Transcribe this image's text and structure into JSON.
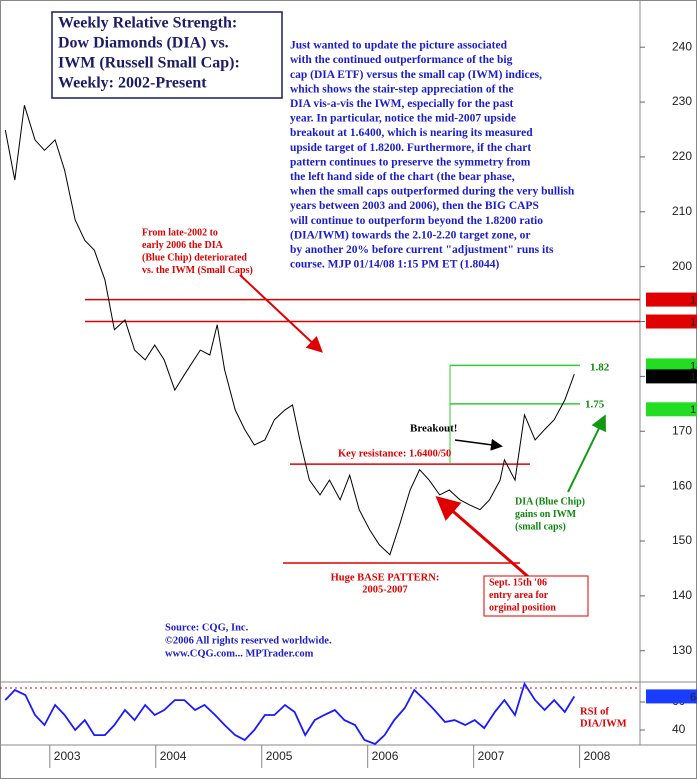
{
  "chart_data": [
    {
      "type": "line",
      "title": [
        "Weekly Relative Strength:",
        "Dow Diamonds (DIA) vs.",
        "IWM (Russell Small Cap):",
        "Weekly: 2002-Present"
      ],
      "x": [
        2002.58,
        2002.67,
        2002.76,
        2002.86,
        2002.95,
        2003.05,
        2003.14,
        2003.24,
        2003.33,
        2003.42,
        2003.52,
        2003.61,
        2003.71,
        2003.8,
        2003.9,
        2003.99,
        2004.08,
        2004.18,
        2004.27,
        2004.42,
        2004.51,
        2004.58,
        2004.65,
        2004.75,
        2004.84,
        2004.93,
        2005.03,
        2005.12,
        2005.22,
        2005.29,
        2005.36,
        2005.45,
        2005.55,
        2005.64,
        2005.74,
        2005.83,
        2005.92,
        2006.02,
        2006.11,
        2006.21,
        2006.3,
        2006.4,
        2006.49,
        2006.58,
        2006.68,
        2006.77,
        2006.87,
        2006.96,
        2007.06,
        2007.15,
        2007.25,
        2007.29,
        2007.39,
        2007.48,
        2007.58,
        2007.67,
        2007.76,
        2007.86,
        2007.95
      ],
      "values": [
        224.9,
        215.8,
        229.4,
        223.1,
        221.2,
        223.1,
        217.6,
        208.5,
        204.8,
        203.0,
        197.6,
        188.5,
        190.3,
        184.8,
        183.0,
        185.7,
        183.0,
        177.5,
        180.3,
        184.8,
        183.9,
        189.4,
        181.2,
        173.9,
        170.3,
        167.5,
        168.4,
        172.1,
        173.9,
        174.8,
        168.4,
        161.1,
        158.4,
        161.1,
        157.5,
        162.0,
        155.7,
        152.0,
        149.3,
        147.5,
        152.9,
        159.3,
        163.0,
        161.1,
        158.4,
        159.3,
        157.5,
        156.6,
        155.7,
        157.5,
        161.1,
        164.8,
        161.1,
        173.0,
        168.4,
        170.3,
        172.1,
        175.7,
        180.4
      ],
      "color": "#000000",
      "xlim": [
        2002.53,
        2008.57
      ],
      "xticks": [
        2003,
        2004,
        2005,
        2006,
        2007,
        2008
      ],
      "ylim": [
        124.3,
        248.6
      ],
      "yticks": [
        130,
        140,
        150,
        160,
        170,
        180,
        190,
        200,
        210,
        220,
        230,
        240
      ],
      "reference_lines": [
        {
          "value": 194,
          "color": "#e00000"
        },
        {
          "value": 190,
          "color": "#e00000"
        },
        {
          "value": 164,
          "color": "#e00000"
        },
        {
          "value": 146,
          "color": "#e00000"
        },
        {
          "value": 182,
          "color": "#33cc33"
        },
        {
          "value": 175,
          "color": "#33cc33"
        }
      ],
      "markers": [
        {
          "value": 194,
          "color": "#e00000"
        },
        {
          "value": 190,
          "color": "#e00000"
        },
        {
          "value": 182,
          "color": "#22dd22"
        },
        {
          "value": 180,
          "color": "#000000"
        },
        {
          "value": 174,
          "color": "#22dd22"
        }
      ],
      "annotations": [
        {
          "color": "#1c1ccc",
          "lines": [
            "Just wanted to update the picture associated",
            "with the continued outperformance of the big",
            "cap (DIA ETF) versus the small cap (IWM) indices,",
            "which shows the stair-step appreciation of the",
            "DIA vis-a-vis the IWM, especially for the past",
            "year. In particular, notice the mid-2007 upside",
            "breakout at 1.6400, which is nearing its measured",
            "upside target of 1.8200. Furthermore, if the chart",
            "pattern continues to preserve the symmetry from",
            "the left hand side of the chart (the bear phase,",
            "when the small caps outperformed during the very bullish",
            "years between 2003 and 2006), then the BIG CAPS",
            "will continue to outperform beyond the 1.8200 ratio",
            "(DIA/IWM) towards the 2.10-2.20 target zone, or",
            "by another 20% before current \"adjustment\" runs its",
            "course.  MJP 01/14/08 1:15 PM ET  (1.8044)"
          ]
        },
        {
          "color": "#e00000",
          "lines": [
            "From late-2002 to",
            "early 2006 the DIA",
            "(Blue Chip) deteriorated",
            "vs. the IWM (Small Caps)"
          ]
        },
        {
          "color": "#e00000",
          "lines": [
            "Key resistance: 1.6400/50"
          ]
        },
        {
          "color": "#000000",
          "lines": [
            "Breakout!"
          ]
        },
        {
          "color": "#e00000",
          "lines": [
            "Huge BASE PATTERN:",
            "2005-2007"
          ]
        },
        {
          "color": "#e00000",
          "lines": [
            "Sept. 15th '06",
            "entry area for",
            "orginal position"
          ]
        },
        {
          "color": "#118811",
          "lines": [
            "DIA (Blue Chip)",
            "gains on IWM",
            "(small caps)"
          ]
        },
        {
          "color": "#118811",
          "lines": [
            "1.82"
          ]
        },
        {
          "color": "#118811",
          "lines": [
            "1.75"
          ]
        },
        {
          "color": "#1c1ccc",
          "lines": [
            "Source: CQG, Inc.",
            "©2006 All rights reserved worldwide.",
            "www.CQG.com... MPTrader.com"
          ]
        },
        {
          "color": "#e00000",
          "lines": [
            "RSI of",
            "DIA/IWM"
          ]
        }
      ]
    },
    {
      "type": "line",
      "x": [
        2002.58,
        2002.67,
        2002.77,
        2002.86,
        2002.95,
        2003.05,
        2003.14,
        2003.24,
        2003.33,
        2003.42,
        2003.52,
        2003.61,
        2003.71,
        2003.8,
        2003.9,
        2003.99,
        2004.08,
        2004.18,
        2004.27,
        2004.37,
        2004.46,
        2004.56,
        2004.65,
        2004.75,
        2004.84,
        2004.93,
        2005.03,
        2005.12,
        2005.22,
        2005.31,
        2005.41,
        2005.5,
        2005.59,
        2005.69,
        2005.78,
        2005.88,
        2005.97,
        2006.07,
        2006.16,
        2006.25,
        2006.35,
        2006.44,
        2006.54,
        2006.63,
        2006.73,
        2006.82,
        2006.92,
        2007.01,
        2007.1,
        2007.2,
        2007.29,
        2007.39,
        2007.48,
        2007.58,
        2007.67,
        2007.76,
        2007.86,
        2007.95
      ],
      "values": [
        61.4,
        68.6,
        65,
        50.7,
        43.6,
        57.9,
        50.7,
        40,
        47.1,
        36.4,
        36.4,
        43.6,
        54.3,
        47.1,
        57.9,
        50.7,
        54.3,
        61.4,
        61.4,
        54.3,
        57.9,
        50.7,
        43.6,
        36.4,
        32.9,
        40,
        50.7,
        50.7,
        57.9,
        52.9,
        36.4,
        47.1,
        50.7,
        54.3,
        47.1,
        43.6,
        32.9,
        30,
        36.4,
        47.1,
        55.7,
        68.6,
        61.4,
        54.3,
        45.7,
        47.1,
        43.6,
        47.1,
        41.4,
        52.9,
        61.4,
        50.7,
        73,
        61.4,
        54.3,
        61.4,
        52.9,
        64
      ],
      "color": "#1a1aff",
      "xlim": [
        2002.53,
        2008.57
      ],
      "ylim": [
        29.3,
        74.3
      ],
      "yticks": [
        40,
        60
      ],
      "reference_lines": [
        {
          "value": 70,
          "color": "#e00000"
        }
      ],
      "markers": [
        {
          "value": 64,
          "color": "#1a3cff"
        }
      ]
    }
  ]
}
